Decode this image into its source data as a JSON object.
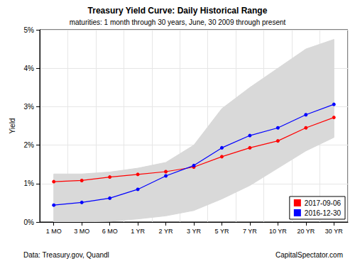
{
  "chart_data": {
    "type": "line",
    "title": "Treasury Yield Curve: Daily Historical Range",
    "subtitle": "maturities: 1 month through 30 years, June, 30 2009 through present",
    "y_label": "Yield",
    "annotations": [
      "Data: Treasury.gov, Quandl",
      "CapitalSpectator.com"
    ],
    "categories": [
      "1 MO",
      "3 MO",
      "6 MO",
      "1 YR",
      "2 YR",
      "3 YR",
      "5 YR",
      "7 YR",
      "10 YR",
      "20 YR",
      "30 YR"
    ],
    "range": {
      "low": [
        0.0,
        0.0,
        0.02,
        0.08,
        0.16,
        0.3,
        0.6,
        0.95,
        1.4,
        1.85,
        2.2
      ],
      "high": [
        1.25,
        1.25,
        1.3,
        1.4,
        1.55,
        2.0,
        2.95,
        3.5,
        4.0,
        4.5,
        4.75
      ],
      "color": "#d9d9d9"
    },
    "series": [
      {
        "name": "2017-09-06",
        "color": "#ff0000",
        "marker": "circle",
        "line_style": "solid",
        "values": [
          1.05,
          1.08,
          1.17,
          1.24,
          1.31,
          1.43,
          1.7,
          1.93,
          2.11,
          2.45,
          2.72
        ]
      },
      {
        "name": "2016-12-30",
        "color": "#0000ff",
        "marker": "circle",
        "line_style": "solid",
        "values": [
          0.44,
          0.51,
          0.62,
          0.85,
          1.2,
          1.47,
          1.93,
          2.25,
          2.45,
          2.79,
          3.06
        ]
      }
    ],
    "ylim": [
      0,
      5
    ],
    "yticks": [
      {
        "value": 0,
        "label": "0%"
      },
      {
        "value": 1,
        "label": "1%"
      },
      {
        "value": 2,
        "label": "2%"
      },
      {
        "value": 3,
        "label": "3%"
      },
      {
        "value": 4,
        "label": "4%"
      },
      {
        "value": 5,
        "label": "5%"
      }
    ],
    "grid": true,
    "legend": "bottom-right"
  }
}
